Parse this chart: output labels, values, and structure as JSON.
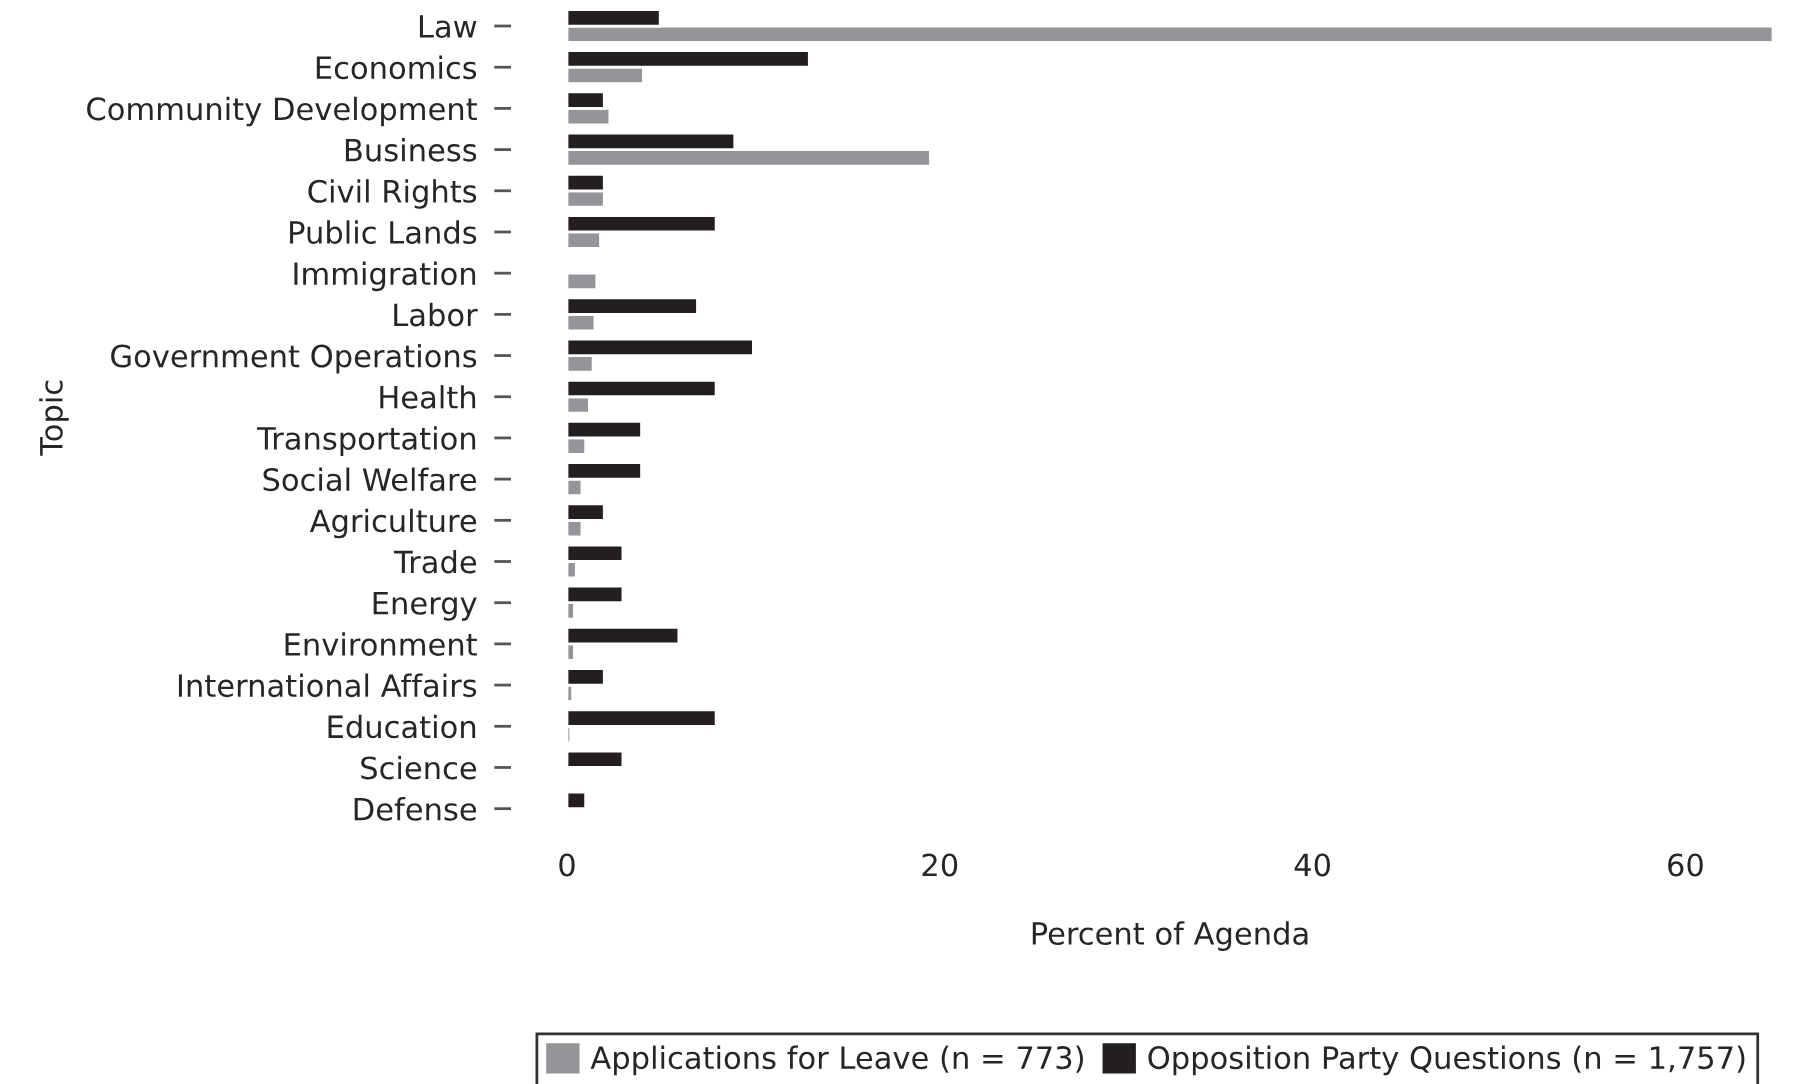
{
  "chart_data": {
    "type": "bar",
    "orientation": "horizontal",
    "xlabel": "Percent of Agenda",
    "ylabel": "Topic",
    "categories": [
      "Law",
      "Economics",
      "Community Development",
      "Business",
      "Civil Rights",
      "Public Lands",
      "Immigration",
      "Labor",
      "Government Operations",
      "Health",
      "Transportation",
      "Social Welfare",
      "Agriculture",
      "Trade",
      "Energy",
      "Environment",
      "International Affairs",
      "Education",
      "Science",
      "Defense"
    ],
    "series": [
      {
        "name": "Applications for Leave (n = 773)",
        "color": "#939598",
        "values": [
          64.7,
          4.1,
          2.3,
          19.5,
          2,
          1.8,
          1.6,
          1.5,
          1.4,
          1.2,
          1.0,
          0.8,
          0.8,
          0.5,
          0.4,
          0.4,
          0.3,
          0.2,
          null,
          null
        ]
      },
      {
        "name": "Opposition Party Questions (n = 1,757)",
        "color": "#231f20",
        "values": [
          5,
          13,
          2,
          9,
          2,
          8,
          null,
          7,
          10,
          8,
          4,
          4,
          2,
          3,
          3,
          6,
          2,
          8,
          3,
          1
        ]
      }
    ],
    "xlim": [
      0,
      64.7
    ],
    "xticks": [
      0,
      20,
      40,
      60
    ],
    "legend": "bottom",
    "grid": false
  }
}
